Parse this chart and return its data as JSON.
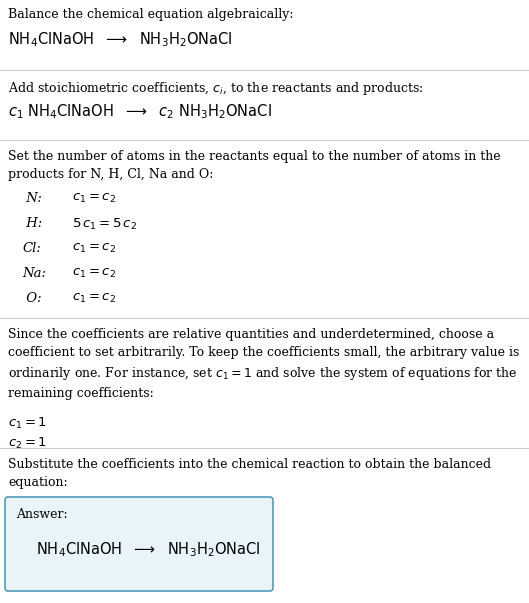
{
  "bg_color": "#ffffff",
  "text_color": "#000000",
  "separator_color": "#cccccc",
  "answer_box_color": "#e8f4f8",
  "answer_box_border": "#5599bb",
  "sections": {
    "s1_line1": "Balance the chemical equation algebraically:",
    "s1_formula": "$\\mathrm{NH_4ClNaOH}$  $\\longrightarrow$  $\\mathrm{NH_3H_2ONaCl}$",
    "s2_line1": "Add stoichiometric coefficients, $c_i$, to the reactants and products:",
    "s2_formula": "$c_1$ $\\mathrm{NH_4ClNaOH}$  $\\longrightarrow$  $c_2$ $\\mathrm{NH_3H_2ONaCl}$",
    "s3_intro": "Set the number of atoms in the reactants equal to the number of atoms in the\nproducts for N, H, Cl, Na and O:",
    "s3_labels": [
      " N:",
      " H:",
      "Cl:",
      "Na:",
      " O:"
    ],
    "s3_eqs": [
      "$c_1 = c_2$",
      "$5\\,c_1 = 5\\,c_2$",
      "$c_1 = c_2$",
      "$c_1 = c_2$",
      "$c_1 = c_2$"
    ],
    "s4_text": "Since the coefficients are relative quantities and underdetermined, choose a\ncoefficient to set arbitrarily. To keep the coefficients small, the arbitrary value is\nordinarily one. For instance, set $c_1 = 1$ and solve the system of equations for the\nremaining coefficients:",
    "s4_sol1": "$c_1 = 1$",
    "s4_sol2": "$c_2 = 1$",
    "s5_intro": "Substitute the coefficients into the chemical reaction to obtain the balanced\nequation:",
    "s5_answer_label": "Answer:",
    "s5_formula": "$\\mathrm{NH_4ClNaOH}$  $\\longrightarrow$  $\\mathrm{NH_3H_2ONaCl}$"
  },
  "fs_body": 9.0,
  "fs_formula": 10.5,
  "fs_eq": 9.5
}
